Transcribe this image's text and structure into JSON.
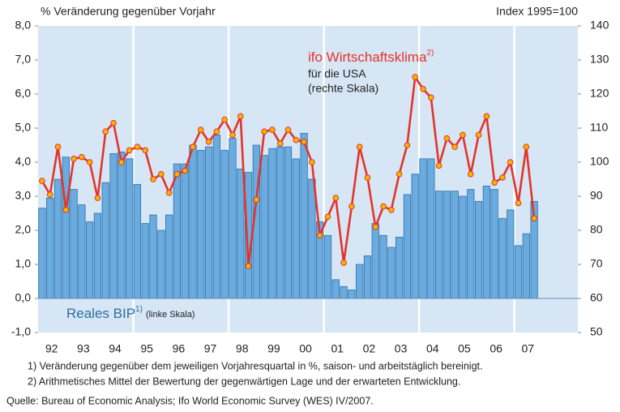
{
  "chart_data": {
    "type": "bar-line",
    "y_axis_label": "%  Veränderung gegenüber Vorjahr",
    "y2_axis_label": "Index 1995=100",
    "categories": [
      null,
      "92",
      null,
      null,
      null,
      "93",
      null,
      null,
      null,
      "94",
      null,
      null,
      null,
      "95",
      null,
      null,
      null,
      "96",
      null,
      null,
      null,
      "97",
      null,
      null,
      null,
      "98",
      null,
      null,
      null,
      "99",
      null,
      null,
      null,
      "00",
      null,
      null,
      null,
      "01",
      null,
      null,
      null,
      "02",
      null,
      null,
      null,
      "03",
      null,
      null,
      null,
      "04",
      null,
      null,
      null,
      "05",
      null,
      null,
      null,
      "06",
      null,
      null,
      null,
      "07",
      null,
      null,
      null,
      null,
      null,
      null
    ],
    "series": [
      {
        "name": "Reales BIP",
        "note": "1)",
        "scale_note": "(linke Skala)",
        "type": "bar",
        "color": "#6aace0",
        "stroke": "#2c6ea6",
        "values": [
          2.65,
          2.95,
          3.5,
          4.15,
          3.2,
          2.75,
          2.25,
          2.5,
          3.4,
          4.25,
          4.3,
          4.1,
          3.35,
          2.2,
          2.45,
          2.0,
          2.45,
          3.95,
          3.95,
          4.5,
          4.35,
          4.45,
          4.8,
          4.35,
          4.7,
          3.8,
          3.7,
          4.5,
          4.2,
          4.4,
          4.45,
          4.45,
          4.1,
          4.85,
          3.5,
          2.25,
          1.85,
          0.55,
          0.35,
          0.25,
          1.0,
          1.25,
          2.2,
          1.85,
          1.5,
          1.8,
          3.05,
          3.65,
          4.1,
          4.1,
          3.15,
          3.15,
          3.15,
          3.0,
          3.2,
          2.85,
          3.3,
          3.2,
          2.35,
          2.6,
          1.55,
          1.9,
          2.85,
          null,
          null,
          null,
          null,
          null
        ]
      },
      {
        "name": "ifo Wirtschaftsklima",
        "note": "2)",
        "name_line2": "für die USA",
        "scale_note": "(rechte Skala)",
        "type": "line",
        "axis": "y2",
        "color": "#e3342b",
        "marker_color": "#f7b500",
        "values": [
          94.5,
          90.5,
          104.5,
          86,
          101,
          101.5,
          100,
          89.5,
          109,
          111.5,
          100,
          103.5,
          104.5,
          103.5,
          95,
          96.5,
          91,
          96.5,
          97.5,
          104.5,
          109.5,
          106,
          109,
          112.5,
          108,
          113.5,
          69.5,
          89,
          109,
          109.5,
          105.5,
          109.5,
          106.5,
          106,
          100,
          78.5,
          84,
          89.5,
          70.5,
          87,
          104.5,
          95.5,
          81,
          87,
          86,
          96.5,
          105,
          125,
          121.5,
          119,
          99,
          107,
          104.5,
          108,
          96.5,
          108,
          113.5,
          94,
          95.5,
          100,
          88,
          104.5,
          83.5,
          null,
          null,
          null,
          null,
          null
        ]
      }
    ],
    "ylim": [
      -1,
      8
    ],
    "yticks": [
      {
        "value": -1,
        "label": "-1,0"
      },
      {
        "value": 0,
        "label": "0,0"
      },
      {
        "value": 1,
        "label": "1,0"
      },
      {
        "value": 2,
        "label": "2,0"
      },
      {
        "value": 3,
        "label": "3,0"
      },
      {
        "value": 4,
        "label": "4,0"
      },
      {
        "value": 5,
        "label": "5,0"
      },
      {
        "value": 6,
        "label": "6,0"
      },
      {
        "value": 7,
        "label": "7,0"
      },
      {
        "value": 8,
        "label": "8,0"
      }
    ],
    "y2lim": [
      50,
      140
    ],
    "y2ticks": [
      50,
      60,
      70,
      80,
      90,
      100,
      110,
      120,
      130,
      140
    ],
    "background": "#d7e6f5",
    "footnotes": [
      "1) Veränderung gegenüber dem jeweiligen Vorjahresquartal in %, saison- und arbeitstäglich bereinigt.",
      "2) Arithmetisches Mittel der Bewertung der gegenwärtigen Lage und der erwarteten Entwicklung."
    ],
    "source": "Quelle: Bureau of Economic Analysis; Ifo World Economic Survey (WES) IV/2007."
  }
}
